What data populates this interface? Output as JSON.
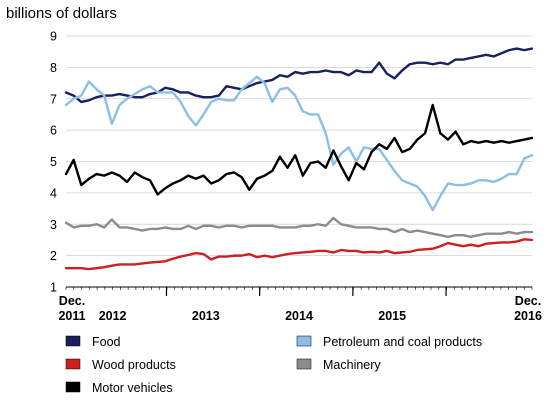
{
  "chart_data": {
    "type": "line",
    "ylabel": "billions of dollars",
    "ylim": [
      1,
      9
    ],
    "yticks": [
      "1",
      "2",
      "3",
      "4",
      "5",
      "6",
      "7",
      "8",
      "9"
    ],
    "grid": true,
    "legend_position": "bottom",
    "x_start": "2011-12",
    "x_end": "2016-12",
    "x_tick_labels": [
      {
        "date": "2011-12",
        "line1": "Dec.",
        "line2": "2011"
      },
      {
        "date": "2012-06",
        "line1": "",
        "line2": "2012"
      },
      {
        "date": "2013-06",
        "line1": "",
        "line2": "2013"
      },
      {
        "date": "2014-06",
        "line1": "",
        "line2": "2014"
      },
      {
        "date": "2015-06",
        "line1": "",
        "line2": "2015"
      },
      {
        "date": "2016-12",
        "line1": "Dec.",
        "line2": "2016"
      }
    ],
    "year_boundaries": [
      "2013-01",
      "2014-01",
      "2015-01",
      "2016-01"
    ],
    "series": [
      {
        "name": "Food",
        "color": "#1a1f5e",
        "values": [
          7.2,
          7.1,
          6.9,
          6.95,
          7.05,
          7.1,
          7.1,
          7.15,
          7.1,
          7.05,
          7.05,
          7.15,
          7.2,
          7.35,
          7.3,
          7.2,
          7.2,
          7.1,
          7.05,
          7.05,
          7.1,
          7.4,
          7.35,
          7.3,
          7.4,
          7.5,
          7.55,
          7.6,
          7.75,
          7.7,
          7.85,
          7.8,
          7.85,
          7.85,
          7.9,
          7.85,
          7.85,
          7.75,
          7.9,
          7.85,
          7.85,
          8.15,
          7.8,
          7.65,
          7.9,
          8.1,
          8.15,
          8.15,
          8.1,
          8.15,
          8.1,
          8.25,
          8.25,
          8.3,
          8.35,
          8.4,
          8.35,
          8.45,
          8.55,
          8.6,
          8.55,
          8.6
        ]
      },
      {
        "name": "Petroleum and coal products",
        "color": "#8dbee6",
        "values": [
          6.8,
          7.0,
          7.1,
          7.55,
          7.3,
          7.1,
          6.2,
          6.8,
          7.0,
          7.15,
          7.3,
          7.4,
          7.2,
          7.2,
          7.2,
          6.9,
          6.45,
          6.15,
          6.5,
          6.9,
          7.0,
          6.95,
          6.95,
          7.3,
          7.5,
          7.7,
          7.5,
          6.9,
          7.3,
          7.35,
          7.1,
          6.6,
          6.5,
          6.5,
          5.9,
          4.9,
          5.25,
          5.45,
          5.0,
          5.45,
          5.4,
          5.4,
          5.05,
          4.7,
          4.4,
          4.3,
          4.2,
          3.9,
          3.45,
          3.9,
          4.3,
          4.25,
          4.25,
          4.3,
          4.4,
          4.4,
          4.35,
          4.45,
          4.6,
          4.6,
          5.1,
          5.2
        ]
      },
      {
        "name": "Wood products",
        "color": "#cc1f1f",
        "values": [
          1.6,
          1.6,
          1.6,
          1.57,
          1.6,
          1.63,
          1.68,
          1.72,
          1.72,
          1.72,
          1.75,
          1.78,
          1.8,
          1.82,
          1.9,
          1.97,
          2.02,
          2.08,
          2.05,
          1.88,
          1.97,
          1.97,
          2.0,
          2.0,
          2.05,
          1.95,
          2.0,
          1.95,
          2.0,
          2.05,
          2.08,
          2.1,
          2.12,
          2.15,
          2.15,
          2.1,
          2.18,
          2.15,
          2.15,
          2.1,
          2.12,
          2.1,
          2.15,
          2.08,
          2.1,
          2.12,
          2.18,
          2.2,
          2.22,
          2.3,
          2.4,
          2.35,
          2.3,
          2.35,
          2.3,
          2.38,
          2.4,
          2.42,
          2.42,
          2.45,
          2.52,
          2.5
        ]
      },
      {
        "name": "Machinery",
        "color": "#8c8c8c",
        "values": [
          3.05,
          2.9,
          2.95,
          2.95,
          3.0,
          2.9,
          3.15,
          2.9,
          2.9,
          2.85,
          2.8,
          2.85,
          2.85,
          2.9,
          2.85,
          2.85,
          2.95,
          2.85,
          2.95,
          2.95,
          2.9,
          2.95,
          2.95,
          2.9,
          2.95,
          2.95,
          2.95,
          2.95,
          2.9,
          2.9,
          2.9,
          2.95,
          2.95,
          3.0,
          2.95,
          3.2,
          3.0,
          2.95,
          2.9,
          2.9,
          2.9,
          2.85,
          2.85,
          2.75,
          2.85,
          2.75,
          2.8,
          2.75,
          2.7,
          2.65,
          2.6,
          2.65,
          2.65,
          2.6,
          2.65,
          2.7,
          2.7,
          2.7,
          2.75,
          2.7,
          2.75,
          2.75
        ]
      },
      {
        "name": "Motor vehicles",
        "color": "#000000",
        "values": [
          4.6,
          5.05,
          4.25,
          4.45,
          4.6,
          4.55,
          4.65,
          4.55,
          4.35,
          4.65,
          4.5,
          4.4,
          3.95,
          4.15,
          4.3,
          4.4,
          4.55,
          4.45,
          4.55,
          4.3,
          4.4,
          4.6,
          4.65,
          4.5,
          4.1,
          4.45,
          4.55,
          4.7,
          5.15,
          4.8,
          5.2,
          4.55,
          4.95,
          5.0,
          4.8,
          5.35,
          4.85,
          4.4,
          4.95,
          4.75,
          5.3,
          5.55,
          5.4,
          5.75,
          5.3,
          5.4,
          5.7,
          5.9,
          6.8,
          5.9,
          5.7,
          5.95,
          5.55,
          5.65,
          5.6,
          5.65,
          5.6,
          5.65,
          5.6,
          5.65,
          5.7,
          5.75
        ]
      }
    ],
    "legend": [
      {
        "series": 0,
        "label": "Food",
        "color": "#1a1f5e"
      },
      {
        "series": 1,
        "label": "Petroleum and coal products",
        "color": "#8dbee6"
      },
      {
        "series": 2,
        "label": "Wood products",
        "color": "#cc1f1f"
      },
      {
        "series": 3,
        "label": "Machinery",
        "color": "#8c8c8c"
      },
      {
        "series": 4,
        "label": "Motor vehicles",
        "color": "#000000"
      }
    ]
  }
}
